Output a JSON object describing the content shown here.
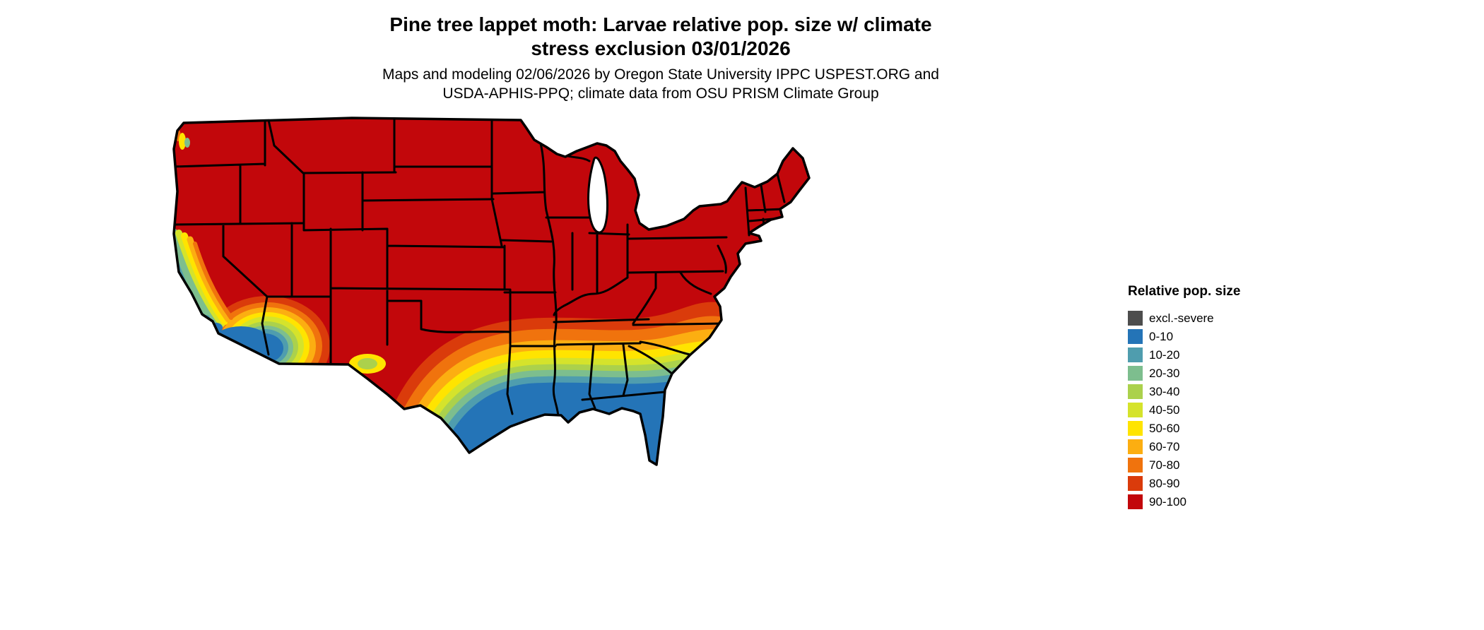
{
  "title": {
    "line1": "Pine tree lappet moth: Larvae relative pop. size w/ climate",
    "line2": "stress exclusion 03/01/2026"
  },
  "subtitle": {
    "line1": "Maps and modeling 02/06/2026 by Oregon State University IPPC USPEST.ORG and",
    "line2": "USDA-APHIS-PPQ; climate data from OSU PRISM Climate Group"
  },
  "legend": {
    "title": "Relative pop. size",
    "items": [
      {
        "label": "excl.-severe",
        "color": "#4d4d4d"
      },
      {
        "label": "0-10",
        "color": "#2474b7"
      },
      {
        "label": "10-20",
        "color": "#4f9dae"
      },
      {
        "label": "20-30",
        "color": "#7dbe8e"
      },
      {
        "label": "30-40",
        "color": "#abd14c"
      },
      {
        "label": "40-50",
        "color": "#d5e32b"
      },
      {
        "label": "50-60",
        "color": "#ffe400"
      },
      {
        "label": "60-70",
        "color": "#fcae11"
      },
      {
        "label": "70-80",
        "color": "#f0730d"
      },
      {
        "label": "80-90",
        "color": "#da3b0b"
      },
      {
        "label": "90-100",
        "color": "#c2070b"
      }
    ]
  }
}
